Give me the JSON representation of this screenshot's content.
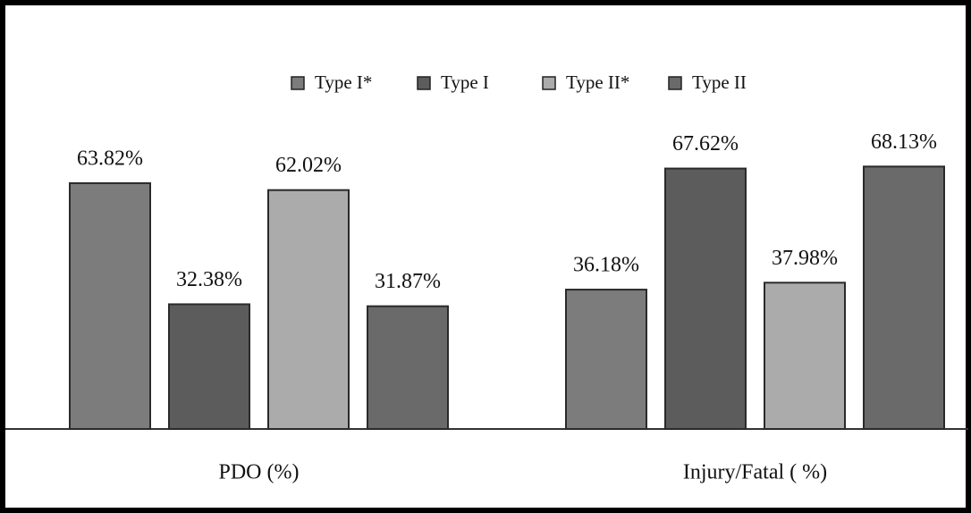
{
  "chart_data": {
    "type": "bar",
    "categories": [
      "PDO (%)",
      "Injury/Fatal ( %)"
    ],
    "series": [
      {
        "name": "Type I*",
        "color": "#7c7c7c",
        "values": [
          63.82,
          36.18
        ],
        "value_labels": [
          "63.82%",
          "36.18%"
        ]
      },
      {
        "name": "Type I",
        "color": "#5c5c5c",
        "values": [
          32.38,
          67.62
        ],
        "value_labels": [
          "32.38%",
          "67.62%"
        ]
      },
      {
        "name": "Type II*",
        "color": "#ababab",
        "values": [
          62.02,
          37.98
        ],
        "value_labels": [
          "62.02%",
          "37.98%"
        ]
      },
      {
        "name": "Type II",
        "color": "#6a6a6a",
        "values": [
          31.87,
          68.13
        ],
        "value_labels": [
          "31.87%",
          "68.13%"
        ]
      }
    ],
    "legend": "top"
  }
}
